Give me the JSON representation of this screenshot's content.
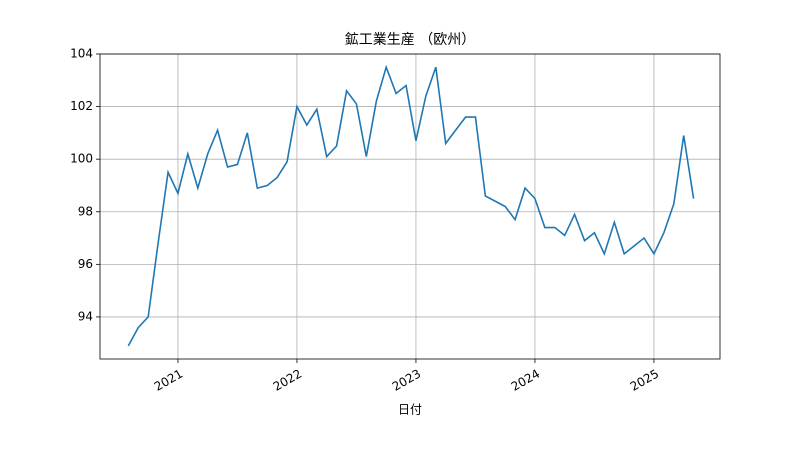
{
  "chart_data": {
    "type": "line",
    "title": "鉱工業生産 （欧州）",
    "x_label": "日付",
    "x": [
      2020.583,
      2020.667,
      2020.75,
      2020.833,
      2020.917,
      2021.0,
      2021.083,
      2021.167,
      2021.25,
      2021.333,
      2021.417,
      2021.5,
      2021.583,
      2021.667,
      2021.75,
      2021.833,
      2021.917,
      2022.0,
      2022.083,
      2022.167,
      2022.25,
      2022.333,
      2022.417,
      2022.5,
      2022.583,
      2022.667,
      2022.75,
      2022.833,
      2022.917,
      2023.0,
      2023.083,
      2023.167,
      2023.25,
      2023.333,
      2023.417,
      2023.5,
      2023.583,
      2023.667,
      2023.75,
      2023.833,
      2023.917,
      2024.0,
      2024.083,
      2024.167,
      2024.25,
      2024.333,
      2024.417,
      2024.5,
      2024.583,
      2024.667,
      2024.75,
      2024.833,
      2024.917,
      2025.0,
      2025.083,
      2025.167,
      2025.25,
      2025.333
    ],
    "series": [
      {
        "color": "#1f77b4",
        "values": [
          92.9,
          93.6,
          94.0,
          96.8,
          99.5,
          98.7,
          100.2,
          98.9,
          100.2,
          101.1,
          99.7,
          99.8,
          101.0,
          98.9,
          99.0,
          99.3,
          99.9,
          102.0,
          101.3,
          101.9,
          100.1,
          100.5,
          102.6,
          102.1,
          100.1,
          102.2,
          103.5,
          102.5,
          102.8,
          100.7,
          102.4,
          103.5,
          100.6,
          101.1,
          101.6,
          101.6,
          98.6,
          98.4,
          98.2,
          97.7,
          98.9,
          98.5,
          97.4,
          97.4,
          97.1,
          97.9,
          96.9,
          97.2,
          96.4,
          97.6,
          96.4,
          96.7,
          97.0,
          96.4,
          97.2,
          98.3,
          100.9,
          98.5
        ]
      }
    ],
    "xlim": [
      2020.345,
      2025.555
    ],
    "xticks": [
      2021,
      2022,
      2023,
      2024,
      2025
    ],
    "ylim": [
      92.4,
      104
    ],
    "yticks": [
      94,
      96,
      98,
      100,
      102,
      104
    ],
    "grid": true
  }
}
